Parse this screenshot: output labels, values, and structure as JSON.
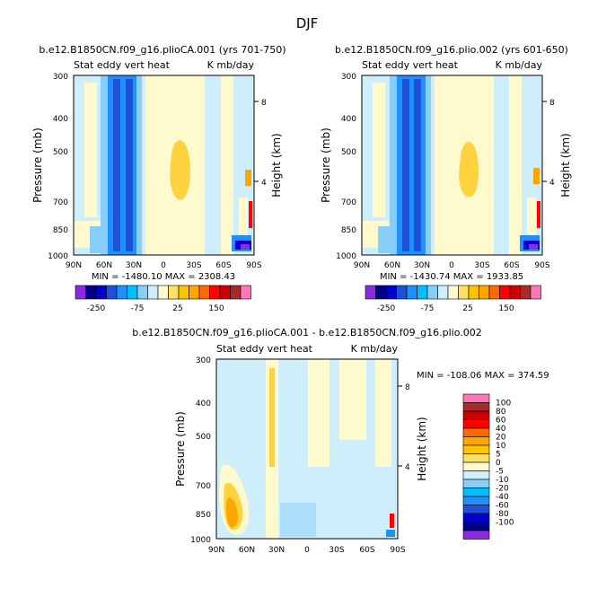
{
  "title": "DJF",
  "chart_data": [
    {
      "type": "heatmap",
      "title": "b.e12.B1850CN.f09_g16.plioCA.001 (yrs 701-750)",
      "left_label": "Stat eddy vert heat",
      "right_label": "K mb/day",
      "ylabel": "Pressure (mb)",
      "y2label": "Height (km)",
      "xticks": [
        "90N",
        "60N",
        "30N",
        "0",
        "30S",
        "60S",
        "90S"
      ],
      "yticks": [
        "300",
        "400",
        "500",
        "700",
        "850",
        "1000"
      ],
      "y2ticks": [
        "8",
        "4"
      ],
      "ylim": [
        1000,
        300
      ],
      "xlim": [
        "90N",
        "90S"
      ],
      "min_max": "MIN = -1480.10   MAX = 2308.43",
      "colorbar_labels": [
        "-250",
        "-75",
        "25",
        "150"
      ]
    },
    {
      "type": "heatmap",
      "title": "b.e12.B1850CN.f09_g16.plio.002 (yrs 601-650)",
      "left_label": "Stat eddy vert heat",
      "right_label": "K mb/day",
      "ylabel": "Pressure (mb)",
      "y2label": "Height (km)",
      "xticks": [
        "90N",
        "60N",
        "30N",
        "0",
        "30S",
        "60S",
        "90S"
      ],
      "yticks": [
        "300",
        "400",
        "500",
        "700",
        "850",
        "1000"
      ],
      "y2ticks": [
        "8",
        "4"
      ],
      "ylim": [
        1000,
        300
      ],
      "xlim": [
        "90N",
        "90S"
      ],
      "min_max": "MIN = -1430.74   MAX = 1933.85",
      "colorbar_labels": [
        "-250",
        "-75",
        "25",
        "150"
      ]
    },
    {
      "type": "heatmap",
      "title": "b.e12.B1850CN.f09_g16.plioCA.001 - b.e12.B1850CN.f09_g16.plio.002",
      "left_label": "Stat eddy vert heat",
      "right_label": "K mb/day",
      "ylabel": "Pressure (mb)",
      "y2label": "Height (km)",
      "xticks": [
        "90N",
        "60N",
        "30N",
        "0",
        "30S",
        "60S",
        "90S"
      ],
      "yticks": [
        "300",
        "400",
        "500",
        "700",
        "850",
        "1000"
      ],
      "y2ticks": [
        "8",
        "4"
      ],
      "ylim": [
        1000,
        300
      ],
      "xlim": [
        "90N",
        "90S"
      ],
      "min_max": "MIN = -108.06   MAX = 374.59",
      "colorbar_labels": [
        "100",
        "80",
        "60",
        "40",
        "20",
        "10",
        "5",
        "0",
        "-5",
        "-10",
        "-20",
        "-40",
        "-60",
        "-80",
        "-100"
      ]
    }
  ],
  "colors": {
    "top_colorbar": [
      "#8a2be2",
      "#00008b",
      "#0000cd",
      "#1e50d8",
      "#1e90ff",
      "#00bfff",
      "#87cefa",
      "#cfeefc",
      "#fffacd",
      "#ffe066",
      "#ffc400",
      "#ffa500",
      "#ff6a00",
      "#ff0000",
      "#cc0000",
      "#a52a2a",
      "#ff77bb"
    ],
    "bottom_colorbar": [
      "#ff77bb",
      "#a52a2a",
      "#cc0000",
      "#ff0000",
      "#ff6a00",
      "#ffa500",
      "#ffc400",
      "#ffe066",
      "#fffacd",
      "#cfeefc",
      "#87cefa",
      "#00bfff",
      "#1e90ff",
      "#1e50d8",
      "#0000cd",
      "#00008b",
      "#8a2be2"
    ],
    "field_light_blue": "#cfeefc",
    "field_light_yellow": "#fffacd",
    "field_yellow": "#ffd23f",
    "field_orange": "#ffa500",
    "field_blue": "#1e90ff",
    "field_dark_blue": "#0000cd"
  }
}
